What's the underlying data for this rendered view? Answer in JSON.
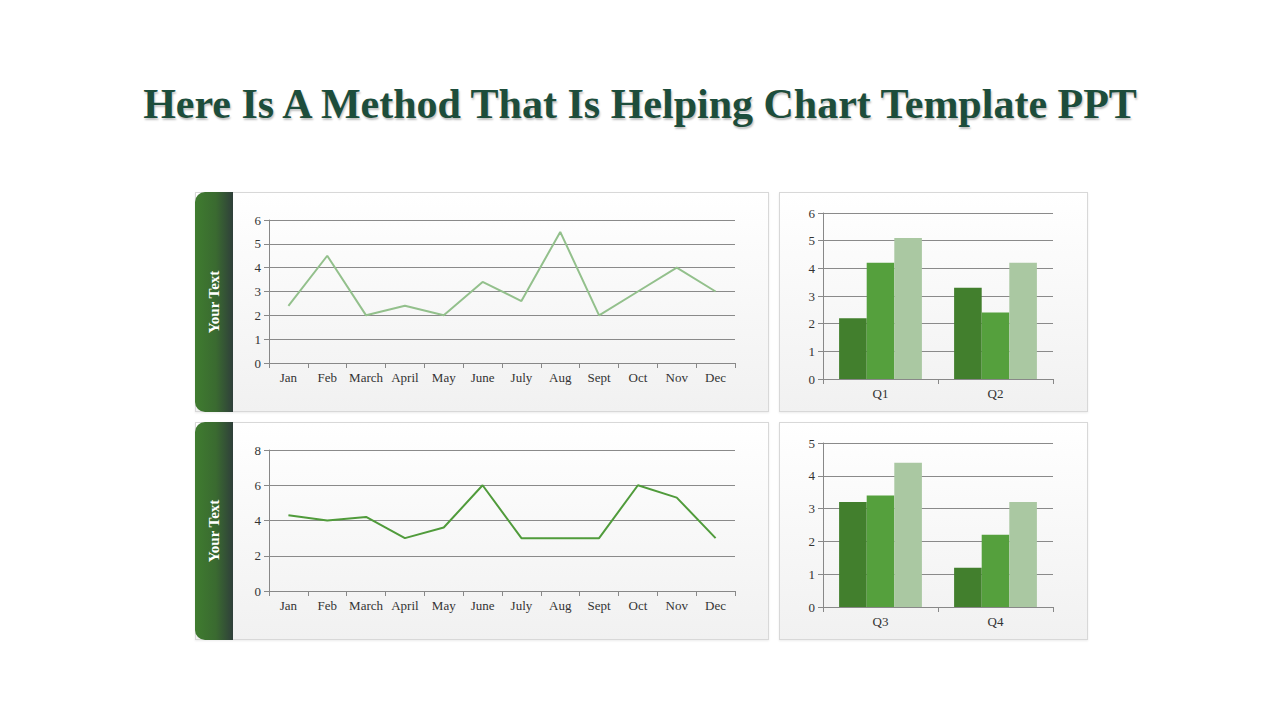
{
  "title": "Here Is A Method That Is Helping Chart Template PPT",
  "chart_data": [
    {
      "type": "line",
      "annotations": [
        "Your Text"
      ],
      "categories": [
        "Jan",
        "Feb",
        "March",
        "April",
        "May",
        "June",
        "July",
        "Aug",
        "Sept",
        "Oct",
        "Nov",
        "Dec"
      ],
      "values": [
        2.4,
        4.5,
        2.0,
        2.4,
        2.0,
        3.4,
        2.6,
        5.5,
        2.0,
        3.0,
        4.0,
        3.0
      ],
      "color": "#93c08c",
      "ylim": [
        0,
        6
      ],
      "yticks": [
        0,
        1,
        2,
        3,
        4,
        5,
        6
      ],
      "grid": true
    },
    {
      "type": "bar",
      "categories": [
        "Q1",
        "Q2"
      ],
      "series": [
        {
          "color": "#427f2d",
          "values": [
            2.2,
            3.3
          ]
        },
        {
          "color": "#55a03d",
          "values": [
            4.2,
            2.4
          ]
        },
        {
          "color": "#aac8a2",
          "values": [
            5.1,
            4.2
          ]
        }
      ],
      "ylim": [
        0,
        6
      ],
      "yticks": [
        0,
        1,
        2,
        3,
        4,
        5,
        6
      ],
      "grid": true
    },
    {
      "type": "line",
      "annotations": [
        "Your Text"
      ],
      "categories": [
        "Jan",
        "Feb",
        "March",
        "April",
        "May",
        "June",
        "July",
        "Aug",
        "Sept",
        "Oct",
        "Nov",
        "Dec"
      ],
      "values": [
        4.3,
        4.0,
        4.2,
        3.0,
        3.6,
        6.0,
        3.0,
        3.0,
        3.0,
        6.0,
        5.3,
        3.0
      ],
      "color": "#509b3b",
      "ylim": [
        0,
        8
      ],
      "yticks": [
        0,
        2,
        4,
        6,
        8
      ],
      "grid": true
    },
    {
      "type": "bar",
      "categories": [
        "Q3",
        "Q4"
      ],
      "series": [
        {
          "color": "#427f2d",
          "values": [
            3.2,
            1.2
          ]
        },
        {
          "color": "#55a03d",
          "values": [
            3.4,
            2.2
          ]
        },
        {
          "color": "#aac8a2",
          "values": [
            4.4,
            3.2
          ]
        }
      ],
      "ylim": [
        0,
        5
      ],
      "yticks": [
        0,
        1,
        2,
        3,
        4,
        5
      ],
      "grid": true
    }
  ]
}
